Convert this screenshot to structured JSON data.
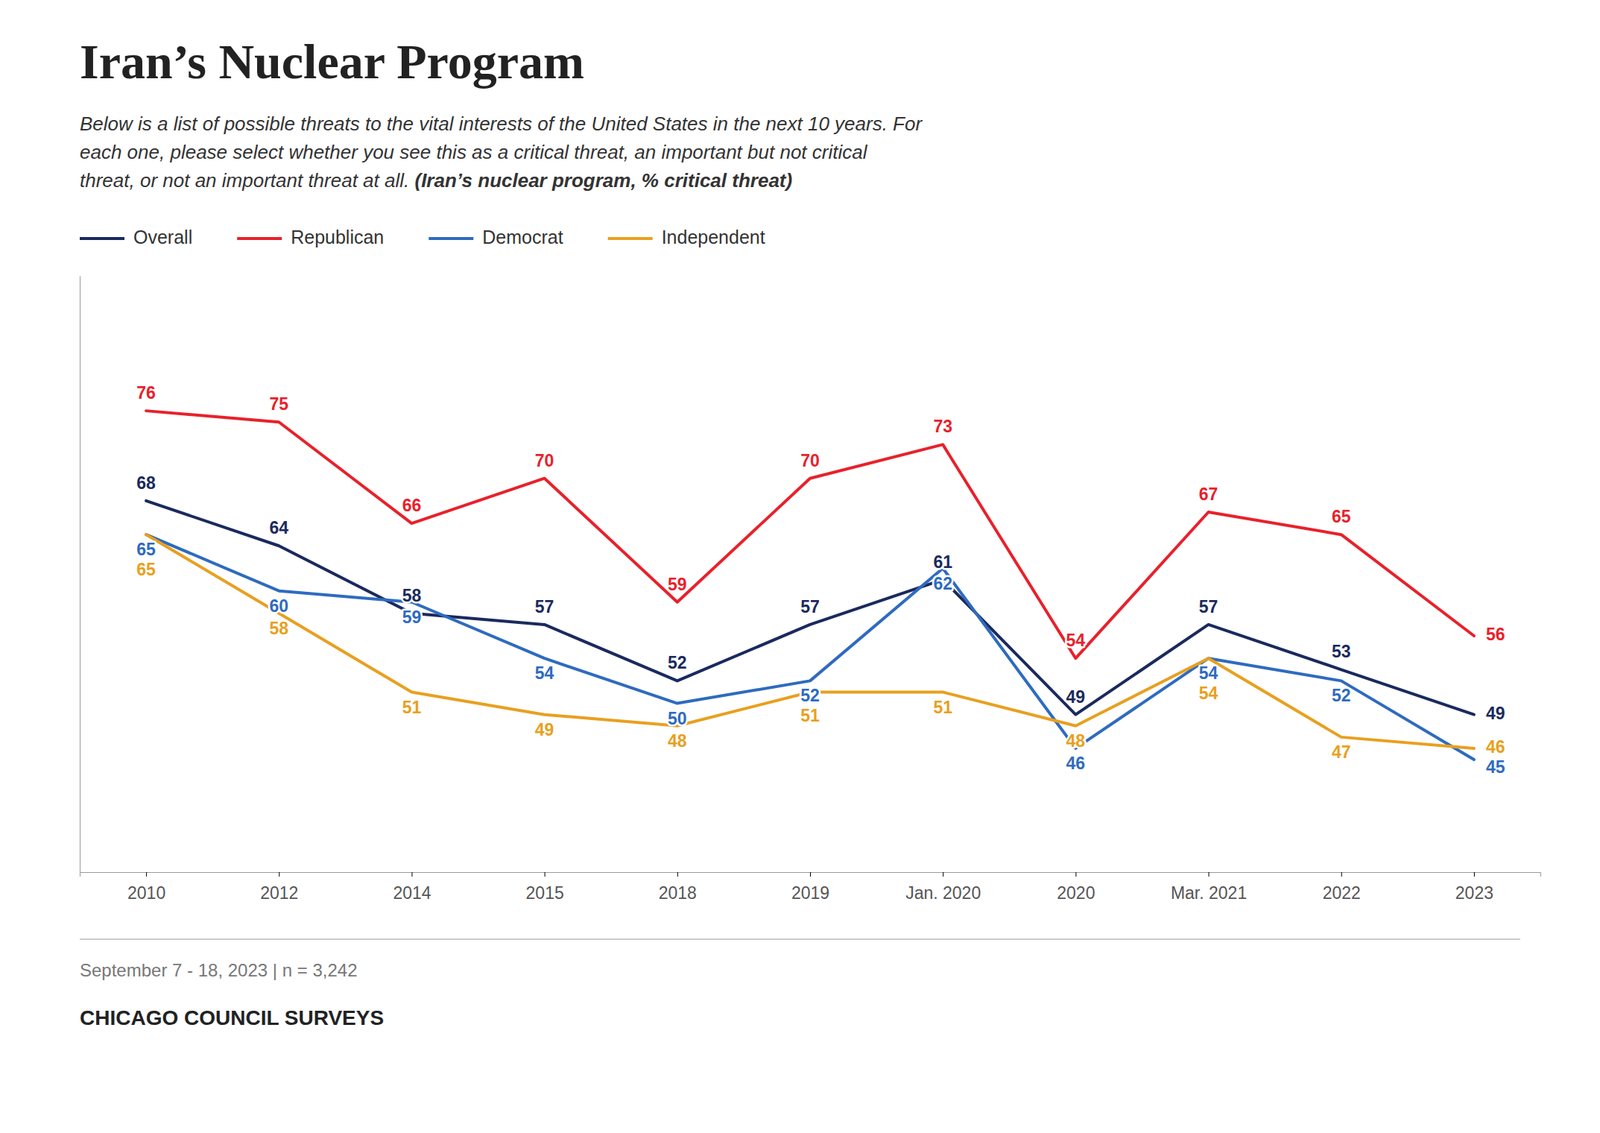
{
  "chart_data": {
    "type": "line",
    "title": "Iran’s Nuclear Program",
    "subtitle": [
      "Below is a list of possible threats to the vital interests of the United States in the next 10 years. For",
      "each one, please select whether you see this as a critical threat, an important but not critical",
      "threat, or not an important threat at all. "
    ],
    "subtitle_emphasis": "(Iran’s nuclear program, % critical threat)",
    "footnote": "September 7 - 18, 2023 | n = 3,242",
    "source": "CHICAGO COUNCIL SURVEYS",
    "categories": [
      "2010",
      "2012",
      "2014",
      "2015",
      "2018",
      "2019",
      "Jan. 2020",
      "2020",
      "Mar. 2021",
      "2022",
      "2023"
    ],
    "series": [
      {
        "name": "Overall",
        "color": "#1a2a5e",
        "values": [
          68,
          64,
          58,
          57,
          52,
          57,
          61,
          49,
          57,
          53,
          49
        ]
      },
      {
        "name": "Republican",
        "color": "#e8212b",
        "values": [
          76,
          75,
          66,
          70,
          59,
          70,
          73,
          54,
          67,
          65,
          56
        ]
      },
      {
        "name": "Democrat",
        "color": "#2e6bbf",
        "values": [
          65,
          60,
          59,
          54,
          50,
          52,
          62,
          46,
          54,
          52,
          45
        ]
      },
      {
        "name": "Independent",
        "color": "#e8a020",
        "values": [
          65,
          58,
          51,
          49,
          48,
          51,
          51,
          48,
          54,
          47,
          46
        ]
      }
    ],
    "ylim": [
      35,
      88
    ],
    "legend": "top",
    "data_labels": true,
    "tick_labels": "x",
    "grid": false
  }
}
